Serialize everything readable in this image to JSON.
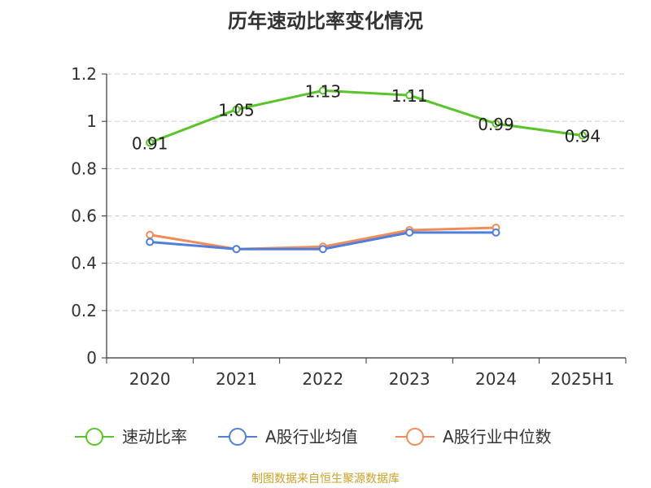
{
  "chart_data": {
    "type": "line",
    "title": "历年速动比率变化情况",
    "categories": [
      "2020",
      "2021",
      "2022",
      "2023",
      "2024",
      "2025H1"
    ],
    "ylim": [
      0,
      1.2
    ],
    "y_ticks": [
      "0",
      "0.2",
      "0.4",
      "0.6",
      "0.8",
      "1",
      "1.2"
    ],
    "grid": true,
    "legend_position": "bottom",
    "series": [
      {
        "name": "速动比率",
        "color": "#5ac42b",
        "values": [
          0.91,
          1.05,
          1.13,
          1.11,
          0.99,
          0.94
        ],
        "labels": [
          "0.91",
          "1.05",
          "1.13",
          "1.11",
          "0.99",
          "0.94"
        ]
      },
      {
        "name": "A股行业均值",
        "color": "#4f7fdb",
        "values": [
          0.49,
          0.46,
          0.46,
          0.53,
          0.53,
          null
        ]
      },
      {
        "name": "A股行业中位数",
        "color": "#f08c5a",
        "values": [
          0.52,
          0.46,
          0.47,
          0.54,
          0.55,
          null
        ]
      }
    ],
    "source": "制图数据来自恒生聚源数据库"
  }
}
